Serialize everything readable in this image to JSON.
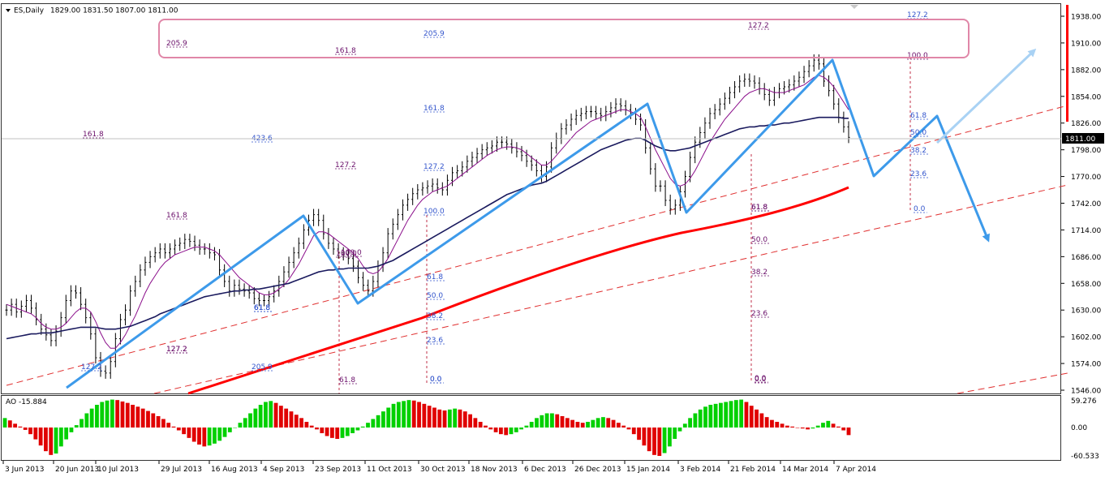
{
  "header": {
    "symbol": "ES,Daily",
    "ohlc": "1829.00 1831.50 1807.00 1811.00",
    "current_price": "1811.00"
  },
  "indicator": {
    "label": "AO -15.884",
    "ticks": [
      "59.276",
      "0.00",
      "-60.533"
    ]
  },
  "colors": {
    "price_bar": "#000000",
    "ma_fast": "#8b0f8b",
    "ma_slow": "#1a1a5e",
    "ma_long": "#ff0000",
    "wave": "#3d9aea",
    "fib_blue": "#3355cc",
    "fib_purple": "#6a0f6a",
    "ao_up": "#00d000",
    "ao_down": "#e00000",
    "box_border": "#e087a8"
  },
  "chart_data": {
    "type": "line",
    "price_axis_ticks": [
      "1938.00",
      "1910.00",
      "1882.00",
      "1854.00",
      "1826.00",
      "1798.00",
      "1770.00",
      "1742.00",
      "1714.00",
      "1686.00",
      "1658.00",
      "1630.00",
      "1602.00",
      "1574.00",
      "1546.00"
    ],
    "date_axis_ticks": [
      "3 Jun 2013",
      "20 Jun 2013",
      "10 Jul 2013",
      "29 Jul 2013",
      "16 Aug 2013",
      "4 Sep 2013",
      "23 Sep 2013",
      "11 Oct 2013",
      "30 Oct 2013",
      "18 Nov 2013",
      "6 Dec 2013",
      "26 Dec 2013",
      "15 Jan 2014",
      "3 Feb 2014",
      "21 Feb 2014",
      "14 Mar 2014",
      "7 Apr 2014"
    ],
    "ylim": [
      1546,
      1948
    ],
    "close": [
      1630,
      1636,
      1628,
      1634,
      1640,
      1632,
      1620,
      1610,
      1604,
      1598,
      1608,
      1622,
      1640,
      1650,
      1648,
      1636,
      1622,
      1605,
      1580,
      1566,
      1564,
      1576,
      1600,
      1620,
      1630,
      1650,
      1660,
      1672,
      1680,
      1686,
      1690,
      1694,
      1690,
      1694,
      1698,
      1700,
      1704,
      1702,
      1698,
      1694,
      1694,
      1690,
      1688,
      1672,
      1660,
      1650,
      1656,
      1652,
      1650,
      1648,
      1642,
      1640,
      1640,
      1644,
      1650,
      1660,
      1670,
      1680,
      1690,
      1700,
      1714,
      1724,
      1730,
      1724,
      1710,
      1700,
      1694,
      1690,
      1688,
      1684,
      1676,
      1664,
      1656,
      1650,
      1660,
      1676,
      1690,
      1710,
      1720,
      1730,
      1740,
      1746,
      1752,
      1756,
      1758,
      1760,
      1762,
      1758,
      1756,
      1766,
      1774,
      1776,
      1780,
      1786,
      1790,
      1794,
      1798,
      1800,
      1802,
      1806,
      1806,
      1804,
      1800,
      1796,
      1792,
      1786,
      1782,
      1776,
      1770,
      1780,
      1800,
      1810,
      1820,
      1824,
      1830,
      1834,
      1836,
      1838,
      1838,
      1836,
      1834,
      1838,
      1842,
      1846,
      1844,
      1840,
      1836,
      1830,
      1824,
      1800,
      1778,
      1760,
      1760,
      1745,
      1736,
      1740,
      1754,
      1770,
      1790,
      1806,
      1816,
      1826,
      1836,
      1840,
      1846,
      1852,
      1858,
      1864,
      1870,
      1872,
      1870,
      1868,
      1862,
      1856,
      1850,
      1858,
      1862,
      1864,
      1866,
      1870,
      1874,
      1880,
      1886,
      1892,
      1888,
      1870,
      1860,
      1846,
      1832,
      1822,
      1811
    ],
    "ma_fast": [
      1636,
      1634,
      1632,
      1630,
      1628,
      1626,
      1622,
      1616,
      1612,
      1610,
      1610,
      1612,
      1616,
      1622,
      1628,
      1632,
      1632,
      1628,
      1618,
      1606,
      1596,
      1590,
      1590,
      1596,
      1604,
      1614,
      1624,
      1636,
      1648,
      1658,
      1666,
      1674,
      1680,
      1684,
      1688,
      1690,
      1692,
      1694,
      1696,
      1696,
      1696,
      1694,
      1692,
      1688,
      1682,
      1676,
      1670,
      1664,
      1660,
      1656,
      1652,
      1648,
      1646,
      1646,
      1648,
      1652,
      1656,
      1662,
      1670,
      1678,
      1688,
      1698,
      1708,
      1712,
      1712,
      1710,
      1706,
      1702,
      1698,
      1694,
      1690,
      1684,
      1676,
      1670,
      1668,
      1670,
      1676,
      1684,
      1694,
      1704,
      1714,
      1724,
      1732,
      1740,
      1746,
      1750,
      1754,
      1756,
      1758,
      1760,
      1764,
      1768,
      1772,
      1776,
      1780,
      1784,
      1788,
      1792,
      1795,
      1798,
      1800,
      1801,
      1801,
      1800,
      1798,
      1794,
      1790,
      1786,
      1782,
      1782,
      1786,
      1792,
      1798,
      1804,
      1810,
      1816,
      1820,
      1824,
      1828,
      1830,
      1832,
      1834,
      1836,
      1838,
      1840,
      1840,
      1838,
      1836,
      1832,
      1822,
      1810,
      1798,
      1788,
      1778,
      1768,
      1762,
      1760,
      1762,
      1768,
      1776,
      1786,
      1796,
      1806,
      1814,
      1822,
      1830,
      1836,
      1842,
      1848,
      1854,
      1858,
      1860,
      1862,
      1862,
      1860,
      1858,
      1858,
      1858,
      1860,
      1862,
      1864,
      1866,
      1870,
      1874,
      1876,
      1874,
      1870,
      1864,
      1856,
      1848,
      1840
    ],
    "ma_slow": [
      1600,
      1601,
      1602,
      1603,
      1604,
      1605,
      1605,
      1606,
      1606,
      1606,
      1607,
      1608,
      1609,
      1610,
      1611,
      1612,
      1612,
      1612,
      1612,
      1611,
      1610,
      1610,
      1610,
      1611,
      1612,
      1613,
      1615,
      1617,
      1619,
      1621,
      1623,
      1626,
      1628,
      1630,
      1632,
      1634,
      1636,
      1638,
      1640,
      1642,
      1644,
      1645,
      1646,
      1647,
      1648,
      1649,
      1650,
      1650,
      1651,
      1651,
      1652,
      1652,
      1653,
      1654,
      1655,
      1656,
      1657,
      1658,
      1660,
      1662,
      1664,
      1666,
      1668,
      1670,
      1671,
      1672,
      1672,
      1673,
      1673,
      1674,
      1674,
      1674,
      1674,
      1674,
      1675,
      1676,
      1678,
      1680,
      1682,
      1685,
      1688,
      1691,
      1694,
      1697,
      1700,
      1703,
      1706,
      1709,
      1712,
      1715,
      1718,
      1721,
      1724,
      1727,
      1730,
      1733,
      1736,
      1739,
      1742,
      1745,
      1748,
      1751,
      1753,
      1755,
      1757,
      1759,
      1761,
      1762,
      1763,
      1765,
      1768,
      1771,
      1774,
      1777,
      1780,
      1783,
      1786,
      1789,
      1792,
      1795,
      1798,
      1800,
      1802,
      1804,
      1806,
      1808,
      1809,
      1810,
      1810,
      1808,
      1805,
      1802,
      1800,
      1798,
      1797,
      1797,
      1798,
      1799,
      1800,
      1802,
      1804,
      1806,
      1808,
      1810,
      1812,
      1814,
      1816,
      1818,
      1820,
      1821,
      1822,
      1822,
      1823,
      1823,
      1824,
      1824,
      1825,
      1826,
      1826,
      1827,
      1828,
      1829,
      1830,
      1831,
      1832,
      1832,
      1832,
      1832,
      1832,
      1831,
      1831
    ],
    "ma_long_range": {
      "start": [
        1546,
        1546
      ],
      "end": [
        1746
      ]
    },
    "fib_labels": [
      "205.9",
      "161.8",
      "205.9",
      "127.2",
      "127.2",
      "161.8",
      "423.6",
      "127.2",
      "127.2",
      "161.8",
      "100.0",
      "100.0",
      "61.8",
      "50.0",
      "38.2",
      "23.6",
      "0.0",
      "161.8",
      "127.2",
      "205.9",
      "100.0",
      "61.8",
      "50.0",
      "38.2",
      "23.6",
      "0.0",
      "61.8",
      "50.0",
      "38.2",
      "23.6",
      "0.0",
      "61.8",
      "61.8",
      "0.0",
      "100.0",
      "61.8",
      "0.0",
      "127.2",
      "127.2",
      "61.8",
      "61.8"
    ],
    "ao_values": [
      20,
      15,
      8,
      2,
      -5,
      -14,
      -25,
      -38,
      -50,
      -58,
      -55,
      -40,
      -25,
      -10,
      5,
      18,
      30,
      40,
      48,
      54,
      57,
      59,
      58,
      55,
      52,
      48,
      44,
      40,
      35,
      30,
      24,
      18,
      10,
      2,
      -6,
      -14,
      -22,
      -30,
      -36,
      -40,
      -38,
      -34,
      -28,
      -20,
      -10,
      0,
      10,
      20,
      30,
      40,
      48,
      54,
      56,
      52,
      46,
      40,
      34,
      27,
      20,
      12,
      4,
      -4,
      -12,
      -18,
      -22,
      -24,
      -22,
      -18,
      -12,
      -6,
      2,
      10,
      18,
      26,
      34,
      42,
      50,
      54,
      56,
      58,
      57,
      54,
      50,
      46,
      42,
      38,
      36,
      38,
      40,
      38,
      34,
      28,
      20,
      12,
      4,
      -4,
      -10,
      -14,
      -16,
      -14,
      -10,
      -4,
      4,
      12,
      20,
      26,
      30,
      30,
      28,
      24,
      20,
      16,
      12,
      10,
      12,
      16,
      20,
      22,
      20,
      16,
      10,
      4,
      -4,
      -14,
      -26,
      -38,
      -50,
      -58,
      -60,
      -54,
      -40,
      -24,
      -8,
      8,
      20,
      30,
      38,
      44,
      48,
      50,
      52,
      54,
      56,
      58,
      59,
      54,
      46,
      38,
      30,
      22,
      16,
      12,
      8,
      4,
      2,
      0,
      -2,
      -4,
      -2,
      4,
      10,
      14,
      8,
      2,
      -6,
      -16
    ]
  }
}
